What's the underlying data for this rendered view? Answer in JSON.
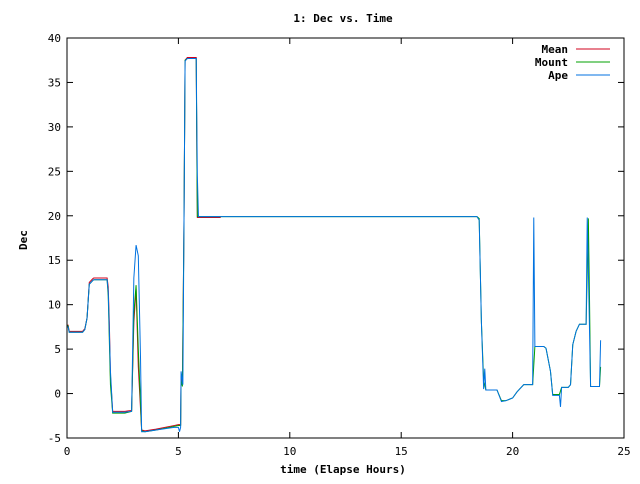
{
  "chart_data": {
    "type": "line",
    "title": "1: Dec vs. Time",
    "xlabel": "time (Elapse Hours)",
    "ylabel": "Dec",
    "xlim": [
      0,
      25
    ],
    "ylim": [
      -5,
      40
    ],
    "xticks": [
      0,
      5,
      10,
      15,
      20,
      25
    ],
    "yticks": [
      -5,
      0,
      5,
      10,
      15,
      20,
      25,
      30,
      35,
      40
    ],
    "grid": false,
    "legend_position": "top-right",
    "series": [
      {
        "name": "Mean",
        "color": "#d0001e",
        "points": [
          [
            0.0,
            7.7
          ],
          [
            0.05,
            7.7
          ],
          [
            0.1,
            7.0
          ],
          [
            0.7,
            7.0
          ],
          [
            0.8,
            7.3
          ],
          [
            0.9,
            8.5
          ],
          [
            1.0,
            12.5
          ],
          [
            1.15,
            12.9
          ],
          [
            1.2,
            13.0
          ],
          [
            1.8,
            13.0
          ],
          [
            1.85,
            12.0
          ],
          [
            1.9,
            8.0
          ],
          [
            1.95,
            2.0
          ],
          [
            2.05,
            -2.0
          ],
          [
            2.6,
            -2.0
          ],
          [
            2.9,
            -1.9
          ],
          [
            3.0,
            8.0
          ],
          [
            3.1,
            11.8
          ],
          [
            3.2,
            3.0
          ],
          [
            3.35,
            -4.1
          ],
          [
            3.5,
            -4.2
          ],
          [
            4.0,
            -4.0
          ],
          [
            4.8,
            -3.6
          ],
          [
            5.0,
            -3.5
          ],
          [
            5.1,
            -3.5
          ],
          [
            5.12,
            2.0
          ],
          [
            5.18,
            1.0
          ],
          [
            5.25,
            19.0
          ],
          [
            5.3,
            37.5
          ],
          [
            5.4,
            37.8
          ],
          [
            5.8,
            37.8
          ],
          [
            5.82,
            30.0
          ],
          [
            5.85,
            19.8
          ],
          [
            6.9,
            19.8
          ]
        ]
      },
      {
        "name": "Mount",
        "color": "#00a000",
        "points": [
          [
            0.0,
            7.7
          ],
          [
            0.05,
            7.6
          ],
          [
            0.1,
            6.9
          ],
          [
            0.7,
            6.9
          ],
          [
            0.8,
            7.2
          ],
          [
            0.9,
            8.5
          ],
          [
            1.0,
            12.3
          ],
          [
            1.15,
            12.7
          ],
          [
            1.2,
            12.8
          ],
          [
            1.8,
            12.8
          ],
          [
            1.85,
            11.0
          ],
          [
            1.9,
            6.0
          ],
          [
            1.95,
            1.0
          ],
          [
            2.05,
            -2.2
          ],
          [
            2.6,
            -2.2
          ],
          [
            2.9,
            -2.0
          ],
          [
            3.0,
            9.0
          ],
          [
            3.1,
            12.2
          ],
          [
            3.2,
            5.0
          ],
          [
            3.35,
            -4.2
          ],
          [
            3.5,
            -4.3
          ],
          [
            4.0,
            -4.1
          ],
          [
            4.8,
            -3.7
          ],
          [
            5.0,
            -3.6
          ],
          [
            5.1,
            -3.6
          ],
          [
            5.12,
            1.5
          ],
          [
            5.18,
            0.8
          ],
          [
            5.25,
            19.0
          ],
          [
            5.3,
            37.5
          ],
          [
            5.4,
            37.7
          ],
          [
            5.8,
            37.7
          ],
          [
            5.82,
            30.0
          ],
          [
            5.85,
            19.9
          ],
          [
            7.0,
            19.9
          ],
          [
            12.0,
            19.9
          ],
          [
            18.4,
            19.9
          ],
          [
            18.5,
            19.7
          ],
          [
            18.6,
            8.0
          ],
          [
            18.7,
            1.5
          ],
          [
            18.8,
            0.4
          ],
          [
            19.3,
            0.4
          ],
          [
            19.5,
            -0.8
          ],
          [
            19.7,
            -0.8
          ],
          [
            20.0,
            -0.5
          ],
          [
            20.2,
            0.2
          ],
          [
            20.5,
            1.0
          ],
          [
            20.9,
            1.0
          ],
          [
            21.0,
            5.3
          ],
          [
            21.4,
            5.3
          ],
          [
            21.5,
            5.1
          ],
          [
            21.7,
            2.5
          ],
          [
            21.8,
            -0.1
          ],
          [
            22.1,
            -0.1
          ],
          [
            22.2,
            0.7
          ],
          [
            22.5,
            0.7
          ],
          [
            22.6,
            1.0
          ],
          [
            22.7,
            5.5
          ],
          [
            22.85,
            7.0
          ],
          [
            23.0,
            7.8
          ],
          [
            23.3,
            7.8
          ],
          [
            23.4,
            19.7
          ],
          [
            23.45,
            11.0
          ],
          [
            23.5,
            0.8
          ],
          [
            23.9,
            0.8
          ],
          [
            23.95,
            3.0
          ]
        ]
      },
      {
        "name": "Ape",
        "color": "#0072e0",
        "points": [
          [
            0.0,
            7.6
          ],
          [
            0.05,
            7.5
          ],
          [
            0.1,
            6.9
          ],
          [
            0.7,
            6.9
          ],
          [
            0.8,
            7.2
          ],
          [
            0.9,
            8.5
          ],
          [
            1.0,
            12.3
          ],
          [
            1.15,
            12.7
          ],
          [
            1.2,
            12.8
          ],
          [
            1.8,
            12.8
          ],
          [
            1.85,
            11.5
          ],
          [
            1.95,
            2.5
          ],
          [
            2.05,
            -2.1
          ],
          [
            2.6,
            -2.1
          ],
          [
            2.9,
            -2.0
          ],
          [
            3.0,
            13.0
          ],
          [
            3.1,
            16.7
          ],
          [
            3.2,
            15.5
          ],
          [
            3.3,
            4.0
          ],
          [
            3.35,
            -4.3
          ],
          [
            3.5,
            -4.3
          ],
          [
            4.0,
            -4.1
          ],
          [
            4.8,
            -3.8
          ],
          [
            5.0,
            -3.8
          ],
          [
            5.05,
            -4.3
          ],
          [
            5.1,
            -3.8
          ],
          [
            5.12,
            2.5
          ],
          [
            5.2,
            1.0
          ],
          [
            5.25,
            19.0
          ],
          [
            5.3,
            37.4
          ],
          [
            5.4,
            37.7
          ],
          [
            5.8,
            37.7
          ],
          [
            5.82,
            32.0
          ],
          [
            5.85,
            24.5
          ],
          [
            5.9,
            19.9
          ],
          [
            7.0,
            19.9
          ],
          [
            12.0,
            19.9
          ],
          [
            18.4,
            19.9
          ],
          [
            18.5,
            19.5
          ],
          [
            18.6,
            8.0
          ],
          [
            18.7,
            0.5
          ],
          [
            18.75,
            2.8
          ],
          [
            18.8,
            0.4
          ],
          [
            19.3,
            0.4
          ],
          [
            19.5,
            -0.9
          ],
          [
            19.7,
            -0.8
          ],
          [
            20.0,
            -0.5
          ],
          [
            20.2,
            0.2
          ],
          [
            20.5,
            1.0
          ],
          [
            20.9,
            1.0
          ],
          [
            20.95,
            19.8
          ],
          [
            21.0,
            5.3
          ],
          [
            21.4,
            5.3
          ],
          [
            21.5,
            5.1
          ],
          [
            21.7,
            2.5
          ],
          [
            21.8,
            -0.2
          ],
          [
            22.1,
            -0.2
          ],
          [
            22.15,
            -1.5
          ],
          [
            22.2,
            0.7
          ],
          [
            22.5,
            0.7
          ],
          [
            22.6,
            1.0
          ],
          [
            22.7,
            5.5
          ],
          [
            22.85,
            7.0
          ],
          [
            23.0,
            7.8
          ],
          [
            23.3,
            7.8
          ],
          [
            23.35,
            19.8
          ],
          [
            23.4,
            14.0
          ],
          [
            23.5,
            0.8
          ],
          [
            23.9,
            0.8
          ],
          [
            23.95,
            6.0
          ]
        ]
      }
    ]
  }
}
